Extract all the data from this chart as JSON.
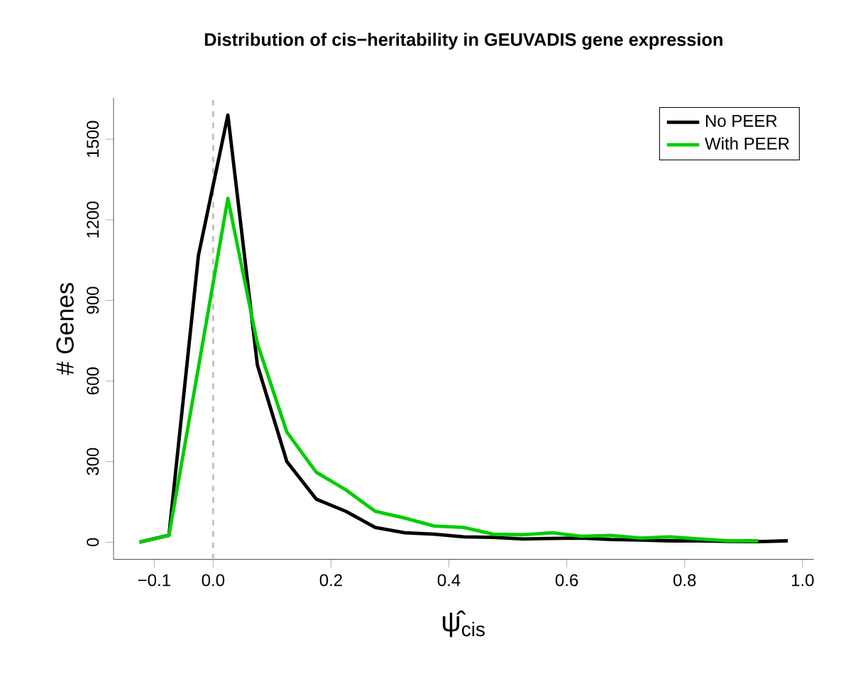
{
  "chart_data": {
    "type": "line",
    "title": "Distribution of cis−heritability in GEUVADIS gene expression",
    "xlabel": "ψ̂$_{cis}$",
    "ylabel": "# Genes",
    "xlim": [
      -0.169,
      1.019
    ],
    "ylim": [
      -64,
      1654
    ],
    "xticks": [
      {
        "value": -0.1,
        "label": "−0.1"
      },
      {
        "value": 0,
        "label": "0.0"
      },
      {
        "value": 0.2,
        "label": "0.2"
      },
      {
        "value": 0.4,
        "label": "0.4"
      },
      {
        "value": 0.6,
        "label": "0.6"
      },
      {
        "value": 0.8,
        "label": "0.8"
      },
      {
        "value": 1,
        "label": "1.0"
      }
    ],
    "yticks": [
      0,
      300,
      600,
      900,
      1200,
      1500
    ],
    "legend": "top right",
    "grid": false,
    "marker": "none",
    "line_style": "solid",
    "ref_lines": [
      {
        "axis": "x",
        "value": 0,
        "color": "#bebebe",
        "line_style": "dashed"
      }
    ],
    "series": [
      {
        "name": "No PEER",
        "color": "#000000",
        "x": [
          -0.125,
          -0.075,
          -0.025,
          0.025,
          0.075,
          0.125,
          0.175,
          0.225,
          0.275,
          0.325,
          0.375,
          0.425,
          0.475,
          0.525,
          0.575,
          0.625,
          0.675,
          0.725,
          0.775,
          0.825,
          0.875,
          0.925,
          0.975
        ],
        "values": [
          0,
          26,
          1067,
          1590,
          660,
          300,
          160,
          115,
          55,
          35,
          30,
          20,
          18,
          12,
          14,
          15,
          10,
          8,
          5,
          5,
          3,
          2,
          5
        ]
      },
      {
        "name": "With PEER",
        "color": "#00cd00",
        "x": [
          -0.125,
          -0.075,
          -0.025,
          0.025,
          0.075,
          0.125,
          0.175,
          0.225,
          0.275,
          0.325,
          0.375,
          0.425,
          0.475,
          0.525,
          0.575,
          0.625,
          0.675,
          0.725,
          0.775,
          0.825,
          0.875,
          0.925
        ],
        "values": [
          0,
          25,
          650,
          1280,
          740,
          410,
          260,
          195,
          115,
          90,
          60,
          55,
          30,
          28,
          35,
          22,
          25,
          15,
          20,
          12,
          5,
          5
        ]
      }
    ]
  }
}
